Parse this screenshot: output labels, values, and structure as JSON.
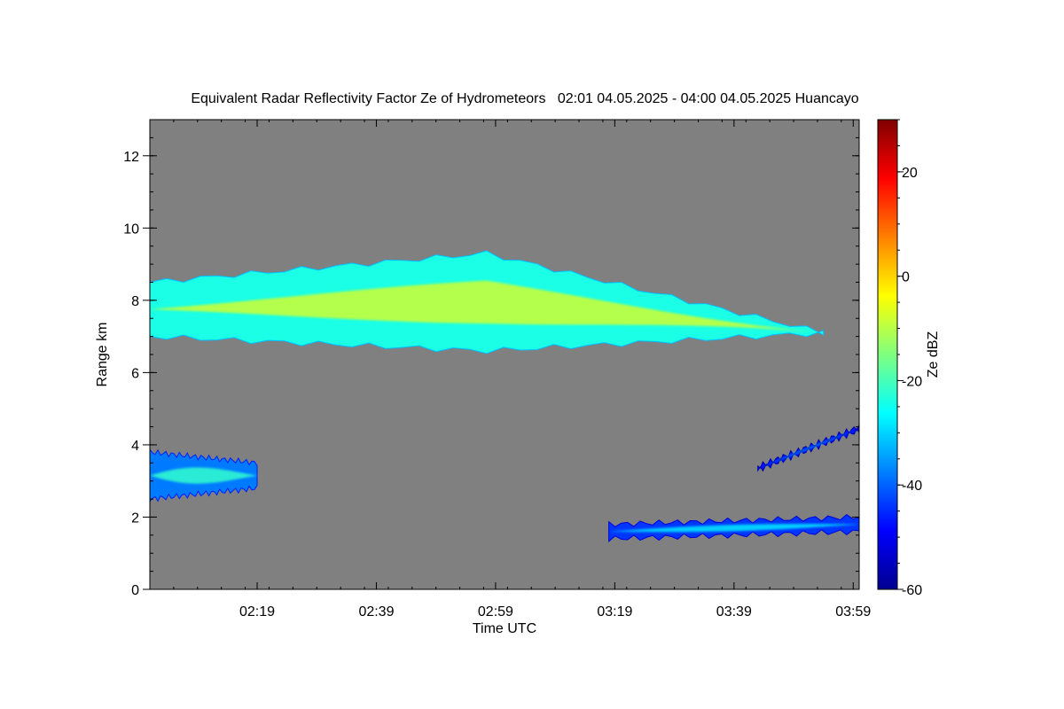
{
  "chart_data": {
    "type": "heatmap",
    "title": "Equivalent Radar Reflectivity Factor Ze of Hydrometeors   02:01 04.05.2025 - 04:00 04.05.2025 Huancayo",
    "xlabel": "Time UTC",
    "ylabel": "Range km",
    "x_tick_labels": [
      "02:19",
      "02:39",
      "02:59",
      "03:19",
      "03:39",
      "03:59"
    ],
    "x_tick_minutes": [
      139,
      159,
      179,
      199,
      219,
      239
    ],
    "xlim_minutes": [
      121,
      240
    ],
    "y_ticks": [
      0,
      2,
      4,
      6,
      8,
      10,
      12
    ],
    "ylim": [
      0,
      13
    ],
    "background_color": "#808080",
    "colorbar": {
      "label": "Ze dBZ",
      "range": [
        -60,
        30
      ],
      "ticks": [
        -60,
        -40,
        -20,
        0,
        20
      ],
      "colormap": "jet"
    },
    "echo_regions": [
      {
        "name": "upper cloud layer",
        "t_start": 121,
        "t_end": 234,
        "base_km": [
          7.0,
          6.6,
          7.1
        ],
        "top_km": [
          8.5,
          9.3,
          7.1
        ],
        "max_dbz": -8
      },
      {
        "name": "low layer left",
        "t_start": 121,
        "t_end": 139,
        "base_km": [
          2.5,
          2.8
        ],
        "top_km": [
          3.8,
          3.5
        ],
        "max_dbz": -22
      },
      {
        "name": "low clutter right",
        "t_start": 198,
        "t_end": 240,
        "base_km": [
          1.4,
          1.6
        ],
        "top_km": [
          1.8,
          2.0
        ],
        "max_dbz": -28
      },
      {
        "name": "mid clutter right",
        "t_start": 223,
        "t_end": 240,
        "base_km": [
          3.3,
          4.4
        ],
        "top_km": [
          3.4,
          4.5
        ],
        "max_dbz": -32
      }
    ]
  }
}
